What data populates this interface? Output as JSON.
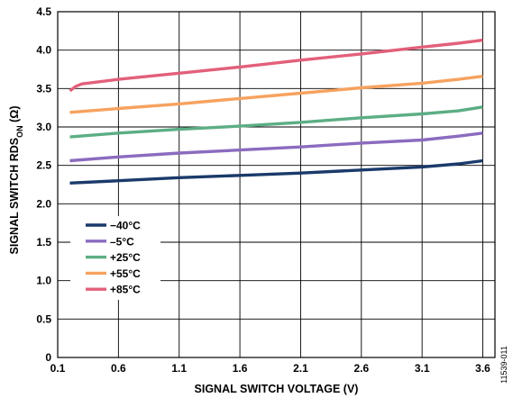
{
  "chart_data": {
    "type": "line",
    "xlabel": "SIGNAL SWITCH VOLTAGE (V)",
    "ylabel_main": "SIGNAL SWITCH RDS",
    "ylabel_sub": "ON",
    "ylabel_unit": " (Ω)",
    "xlim": [
      0.1,
      3.7
    ],
    "ylim": [
      0,
      4.5
    ],
    "x_ticks": [
      "0.1",
      "0.6",
      "1.1",
      "1.6",
      "2.1",
      "2.6",
      "3.1",
      "3.6"
    ],
    "y_ticks": [
      "0",
      "0.5",
      "1.0",
      "1.5",
      "2.0",
      "2.5",
      "3.0",
      "3.5",
      "4.0",
      "4.5"
    ],
    "grid": true,
    "legend_position": "lower-left",
    "figure_id": "11539-011",
    "series": [
      {
        "name": "−40°C",
        "color": "#1b3a6b",
        "points": [
          [
            0.2,
            2.27
          ],
          [
            0.6,
            2.3
          ],
          [
            1.1,
            2.34
          ],
          [
            1.6,
            2.37
          ],
          [
            2.1,
            2.4
          ],
          [
            2.6,
            2.44
          ],
          [
            3.1,
            2.48
          ],
          [
            3.4,
            2.52
          ],
          [
            3.6,
            2.56
          ]
        ]
      },
      {
        "name": "–5°C",
        "color": "#8c6bbf",
        "points": [
          [
            0.2,
            2.56
          ],
          [
            0.6,
            2.61
          ],
          [
            1.1,
            2.66
          ],
          [
            1.6,
            2.7
          ],
          [
            2.1,
            2.74
          ],
          [
            2.6,
            2.79
          ],
          [
            3.1,
            2.83
          ],
          [
            3.4,
            2.88
          ],
          [
            3.6,
            2.92
          ]
        ]
      },
      {
        "name": "+25°C",
        "color": "#5cae84",
        "points": [
          [
            0.2,
            2.87
          ],
          [
            0.6,
            2.92
          ],
          [
            1.1,
            2.97
          ],
          [
            1.6,
            3.01
          ],
          [
            2.1,
            3.06
          ],
          [
            2.6,
            3.12
          ],
          [
            3.1,
            3.17
          ],
          [
            3.4,
            3.21
          ],
          [
            3.6,
            3.26
          ]
        ]
      },
      {
        "name": "+55°C",
        "color": "#f6a25f",
        "points": [
          [
            0.2,
            3.19
          ],
          [
            0.6,
            3.24
          ],
          [
            1.1,
            3.3
          ],
          [
            1.6,
            3.37
          ],
          [
            2.1,
            3.44
          ],
          [
            2.6,
            3.51
          ],
          [
            3.1,
            3.57
          ],
          [
            3.4,
            3.62
          ],
          [
            3.6,
            3.66
          ]
        ]
      },
      {
        "name": "+85°C",
        "color": "#e2607a",
        "points": [
          [
            0.2,
            3.47
          ],
          [
            0.25,
            3.53
          ],
          [
            0.3,
            3.56
          ],
          [
            0.6,
            3.62
          ],
          [
            1.1,
            3.7
          ],
          [
            1.6,
            3.78
          ],
          [
            2.1,
            3.87
          ],
          [
            2.6,
            3.95
          ],
          [
            3.1,
            4.04
          ],
          [
            3.4,
            4.09
          ],
          [
            3.6,
            4.13
          ]
        ]
      }
    ]
  }
}
